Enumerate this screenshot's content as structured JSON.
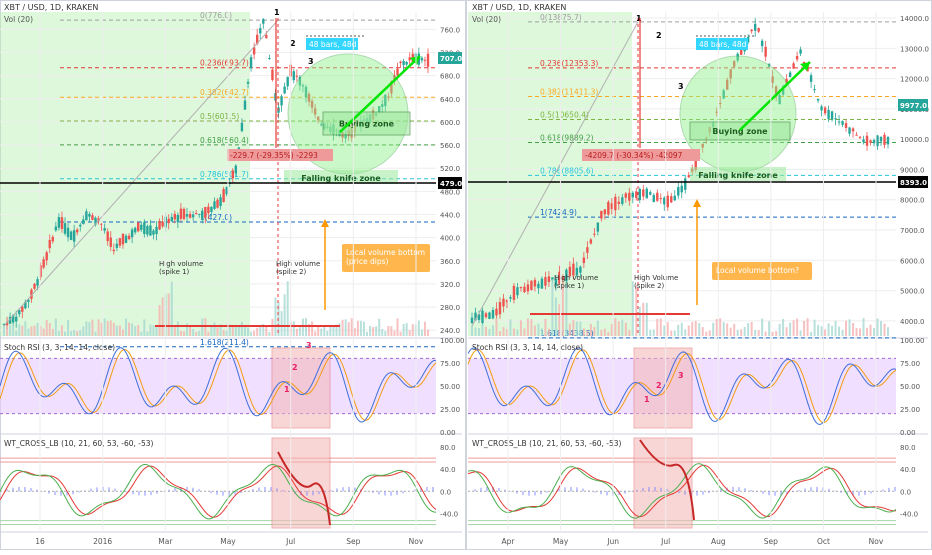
{
  "colors": {
    "up": "#26a69a",
    "down": "#ef5350",
    "grid": "#eeeeee",
    "border": "#cfd3dc",
    "green_zone": "#b6f0b0",
    "pink_zone": "#f5b5b5",
    "purple_band": "#e6c9ff",
    "fib_red": "#e53935",
    "fib_green": "#43a047",
    "fib_gray": "#9e9e9e",
    "label_cyan": "#33d6ff",
    "orange": "#ff9800",
    "arrow_green": "#00e600",
    "rsi_blue": "#3f6fd8",
    "rsi_orange": "#f39c12",
    "wt_green": "#4caf50",
    "wt_red": "#e53935",
    "wt_hist": "#7b83ff"
  },
  "icons": [
    "arrow-up-right-icon",
    "arrow-up-icon"
  ],
  "chart_data": [
    {
      "type": "candlestick",
      "title": "XBT / USD, 1D, KRAKEN",
      "subtitle": "Vol (20)",
      "price_yticks": [
        "760.0",
        "720.0",
        "680.0",
        "640.0",
        "600.0",
        "560.0",
        "520.0",
        "480.0",
        "440.0",
        "400.0",
        "360.0",
        "320.0",
        "280.0",
        "240.0"
      ],
      "price_ylim": [
        230,
        790
      ],
      "x_ticks": [
        "16",
        "2016",
        "Mar",
        "May",
        "Jul",
        "Sep",
        "Nov"
      ],
      "last_price": "707.0",
      "marker_price": "479.0",
      "fib_levels": [
        {
          "label": "0(776.0)",
          "value": 776.0
        },
        {
          "label": "0.236(693.7)",
          "value": 693.7
        },
        {
          "label": "0.382(642.7)",
          "value": 642.7
        },
        {
          "label": "0.5(601.5)",
          "value": 601.5
        },
        {
          "label": "0.618(560.4)",
          "value": 560.4
        },
        {
          "label": "0.786(501.7)",
          "value": 501.7
        },
        {
          "label": "1(427.0)",
          "value": 427.0
        },
        {
          "label": "1.618(211.4)",
          "value": 211.4
        }
      ],
      "annotations": {
        "wave_labels": [
          "1",
          "2",
          "3"
        ],
        "duration": "48 bars, 48d",
        "drop": "-229.7 (-29.35%) -2293",
        "buying_zone": "Buying zone",
        "falling_knife": "Falling knife zone",
        "volume_note": "Local volume bottom (price dips)",
        "spike1": "High volume (spike 1)",
        "spike2": "High volume (spike 2)"
      },
      "price_path": [
        [
          0,
          250
        ],
        [
          3,
          265
        ],
        [
          6,
          300
        ],
        [
          9,
          360
        ],
        [
          12,
          430
        ],
        [
          15,
          400
        ],
        [
          18,
          440
        ],
        [
          21,
          430
        ],
        [
          24,
          380
        ],
        [
          27,
          400
        ],
        [
          30,
          420
        ],
        [
          33,
          410
        ],
        [
          36,
          430
        ],
        [
          39,
          440
        ],
        [
          42,
          440
        ],
        [
          45,
          445
        ],
        [
          48,
          470
        ],
        [
          51,
          520
        ],
        [
          54,
          700
        ],
        [
          57,
          776
        ],
        [
          60,
          620
        ],
        [
          63,
          690
        ],
        [
          66,
          660
        ],
        [
          69,
          600
        ],
        [
          72,
          590
        ],
        [
          75,
          575
        ],
        [
          78,
          600
        ],
        [
          81,
          610
        ],
        [
          84,
          640
        ],
        [
          87,
          700
        ],
        [
          90,
          710
        ],
        [
          93,
          707
        ]
      ],
      "stoch_rsi": {
        "title": "Stoch RSI (3, 3, 14, 14, close)",
        "yticks": [
          "100.00",
          "75.00",
          "50.00",
          "25.00",
          "0.00"
        ],
        "labels": [
          "1",
          "2",
          "3"
        ]
      },
      "wt_cross": {
        "title": "WT_CROSS_LB (10, 21, 60, 53, -60, -53)",
        "yticks": [
          "80.0",
          "40.0",
          "0.0",
          "-40.0"
        ]
      }
    },
    {
      "type": "candlestick",
      "title": "XBT / USD, 1D, KRAKEN",
      "subtitle": "Vol (20)",
      "price_yticks": [
        "14000.0",
        "13000.0",
        "12000.0",
        "11000.0",
        "10000.0",
        "9000.0",
        "8000.0",
        "7000.0",
        "6000.0",
        "5000.0",
        "4000.0"
      ],
      "price_ylim": [
        3500,
        14200
      ],
      "x_ticks": [
        "Apr",
        "May",
        "Jun",
        "Jul",
        "Aug",
        "Sep",
        "Oct",
        "Nov"
      ],
      "last_price": "9977.0",
      "marker_price": "8393.0",
      "fib_levels": [
        {
          "label": "0(13875.7)",
          "value": 13875.7
        },
        {
          "label": "0.236(12353.3)",
          "value": 12353.3
        },
        {
          "label": "0.382(11411.3)",
          "value": 11411.3
        },
        {
          "label": "0.5(10650.4)",
          "value": 10650.4
        },
        {
          "label": "0.618(9889.2)",
          "value": 9889.2
        },
        {
          "label": "0.786(8805.6)",
          "value": 8805.6
        },
        {
          "label": "1(7424.9)",
          "value": 7424.9
        },
        {
          "label": "1.618(3438.5)",
          "value": 3438.5
        }
      ],
      "annotations": {
        "wave_labels": [
          "1",
          "2",
          "3"
        ],
        "duration": "48 bars, 48d",
        "drop": "-4209.7 (-30.34%) -42097",
        "buying_zone": "Buying zone",
        "falling_knife": "Falling knife zone",
        "volume_note": "Local volume bottom?",
        "spike1": "High volume (spike 1)",
        "spike2": "High Volume (spike 2)"
      },
      "price_path": [
        [
          0,
          4100
        ],
        [
          3,
          4200
        ],
        [
          6,
          5000
        ],
        [
          9,
          5200
        ],
        [
          12,
          5400
        ],
        [
          15,
          5800
        ],
        [
          18,
          7600
        ],
        [
          21,
          8100
        ],
        [
          24,
          8200
        ],
        [
          27,
          7900
        ],
        [
          30,
          8800
        ],
        [
          33,
          10500
        ],
        [
          36,
          12500
        ],
        [
          39,
          13875
        ],
        [
          42,
          11300
        ],
        [
          45,
          12900
        ],
        [
          48,
          11000
        ],
        [
          51,
          10500
        ],
        [
          54,
          9900
        ],
        [
          57,
          9977
        ]
      ],
      "stoch_rsi": {
        "title": "Stoch RSI (3, 3, 14, 14, close)",
        "yticks": [
          "100.00",
          "75.00",
          "50.00",
          "25.00",
          "0.00"
        ],
        "labels": [
          "1",
          "2",
          "3"
        ]
      },
      "wt_cross": {
        "title": "WT_CROSS_LB (10, 21, 60, 53, -60, -53)",
        "yticks": [
          "80.0",
          "40.0",
          "0.0",
          "-40.0"
        ]
      }
    }
  ]
}
